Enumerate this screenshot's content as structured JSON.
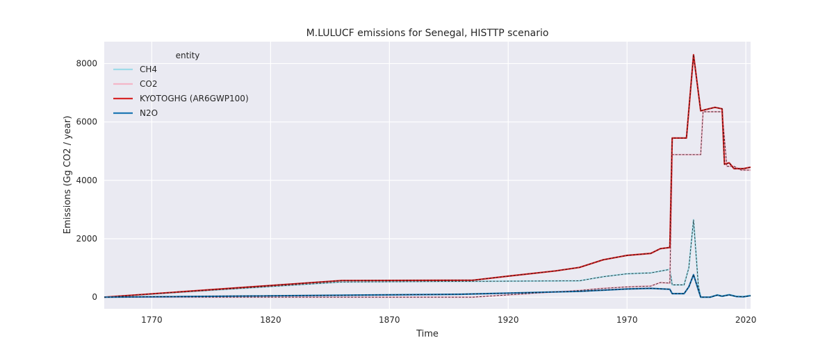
{
  "chart_data": {
    "type": "line",
    "title": "M.LULUCF emissions for Senegal, HISTTP scenario",
    "xlabel": "Time",
    "ylabel": "Emissions (Gg CO2 / year)",
    "xlim": [
      1750,
      2022
    ],
    "ylim": [
      -400,
      8750
    ],
    "xticks": [
      1770,
      1820,
      1870,
      1920,
      1970,
      2020
    ],
    "yticks": [
      0,
      2000,
      4000,
      6000,
      8000
    ],
    "grid": true,
    "legend": {
      "title": "entity",
      "placement": "top-left"
    },
    "series": [
      {
        "name": "CH4",
        "color": "#9fdbe8",
        "points": [
          [
            1750,
            0
          ],
          [
            1850,
            520
          ],
          [
            1950,
            560
          ],
          [
            1960,
            700
          ],
          [
            1970,
            800
          ],
          [
            1980,
            830
          ],
          [
            1988,
            950
          ],
          [
            1989,
            420
          ],
          [
            1994,
            420
          ],
          [
            1996,
            1000
          ],
          [
            1998,
            2650
          ],
          [
            2000,
            400
          ],
          [
            2001,
            0
          ],
          [
            2005,
            0
          ],
          [
            2008,
            80
          ],
          [
            2010,
            40
          ],
          [
            2013,
            90
          ],
          [
            2016,
            30
          ],
          [
            2019,
            20
          ],
          [
            2022,
            60
          ]
        ]
      },
      {
        "name": "CO2",
        "color": "#f4b6c8",
        "points": [
          [
            1750,
            0
          ],
          [
            1905,
            0
          ],
          [
            1930,
            130
          ],
          [
            1950,
            230
          ],
          [
            1960,
            300
          ],
          [
            1970,
            350
          ],
          [
            1980,
            380
          ],
          [
            1984,
            500
          ],
          [
            1988,
            480
          ],
          [
            1989,
            4880
          ],
          [
            2001,
            4880
          ],
          [
            2002,
            6350
          ],
          [
            2010,
            6350
          ],
          [
            2012,
            4480
          ],
          [
            2015,
            4480
          ],
          [
            2018,
            4350
          ],
          [
            2022,
            4350
          ]
        ]
      },
      {
        "name": "KYOTOGHG (AR6GWP100)",
        "color": "#d62728",
        "points": [
          [
            1750,
            0
          ],
          [
            1850,
            570
          ],
          [
            1905,
            580
          ],
          [
            1920,
            720
          ],
          [
            1940,
            900
          ],
          [
            1950,
            1020
          ],
          [
            1960,
            1280
          ],
          [
            1970,
            1430
          ],
          [
            1980,
            1500
          ],
          [
            1984,
            1660
          ],
          [
            1988,
            1700
          ],
          [
            1989,
            5450
          ],
          [
            1995,
            5450
          ],
          [
            1998,
            8300
          ],
          [
            2001,
            6380
          ],
          [
            2007,
            6500
          ],
          [
            2010,
            6450
          ],
          [
            2011,
            4550
          ],
          [
            2013,
            4600
          ],
          [
            2015,
            4400
          ],
          [
            2019,
            4400
          ],
          [
            2022,
            4450
          ]
        ]
      },
      {
        "name": "N2O",
        "color": "#1f77b4",
        "points": [
          [
            1750,
            0
          ],
          [
            1900,
            100
          ],
          [
            1950,
            200
          ],
          [
            1970,
            280
          ],
          [
            1980,
            300
          ],
          [
            1988,
            270
          ],
          [
            1989,
            120
          ],
          [
            1994,
            120
          ],
          [
            1996,
            350
          ],
          [
            1998,
            770
          ],
          [
            2000,
            250
          ],
          [
            2001,
            0
          ],
          [
            2005,
            0
          ],
          [
            2008,
            70
          ],
          [
            2010,
            30
          ],
          [
            2013,
            80
          ],
          [
            2016,
            20
          ],
          [
            2019,
            10
          ],
          [
            2022,
            50
          ]
        ]
      }
    ]
  }
}
